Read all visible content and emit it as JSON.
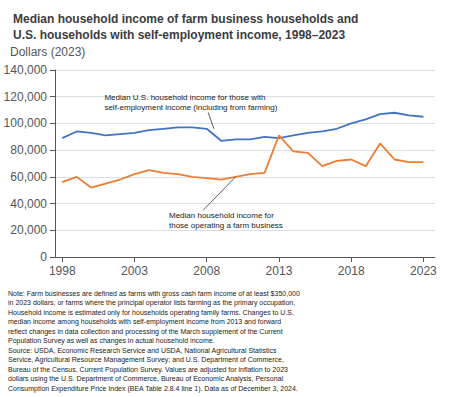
{
  "chart_data": {
    "type": "line",
    "title": "Median household income of farm business households and\nU.S. households with self-employment income, 1998–2023",
    "ylabel": "Dollars (2023)",
    "x": [
      1998,
      1999,
      2000,
      2001,
      2002,
      2003,
      2004,
      2005,
      2006,
      2007,
      2008,
      2009,
      2010,
      2011,
      2012,
      2013,
      2014,
      2015,
      2016,
      2017,
      2018,
      2019,
      2020,
      2021,
      2022,
      2023
    ],
    "series": [
      {
        "color": "#4472c4",
        "values": [
          89000,
          94000,
          93000,
          91000,
          92000,
          93000,
          95000,
          96000,
          97000,
          97000,
          96000,
          87000,
          88000,
          88000,
          90000,
          89000,
          91000,
          93000,
          94000,
          96000,
          100000,
          103000,
          107000,
          108000,
          106000,
          105000
        ]
      },
      {
        "color": "#ed7d31",
        "values": [
          56000,
          60000,
          52000,
          55000,
          58000,
          62000,
          65000,
          63000,
          62000,
          60000,
          59000,
          58000,
          60000,
          62000,
          63000,
          91000,
          79000,
          78000,
          68000,
          72000,
          73000,
          68000,
          85000,
          73000,
          71000,
          71000
        ]
      }
    ],
    "xlim": [
      1997.5,
      2023.8
    ],
    "xticks": [
      1998,
      2003,
      2008,
      2013,
      2018,
      2023
    ],
    "ylim": [
      0,
      140000
    ],
    "yticks": [
      0,
      {
        "value": 20000,
        "label": "20,000"
      },
      {
        "value": 40000,
        "label": "40,000"
      },
      {
        "value": 60000,
        "label": "60,000"
      },
      {
        "value": 80000,
        "label": "80,000"
      },
      {
        "value": 100000,
        "label": "100,000"
      },
      {
        "value": 120000,
        "label": "120,000"
      },
      {
        "value": 140000,
        "label": "140,000"
      }
    ],
    "grid": true,
    "annotations": [
      {
        "text": "Median U.S. household income for those with\nself-employment income (including from farming)",
        "x": 2008.5,
        "y": 96000
      },
      {
        "text": "Median household income for\nthose operating a farm business",
        "x": 2010,
        "y": 60000
      }
    ],
    "note": "Note: Farm businesses are defined as farms with gross cash farm income of at least $350,000\nin 2023 dollars, or farms where the principal operator lists farming as the primary occupation.\nHousehold income is estimated only for households operating family farms. Changes to U.S.\nmedian income among households with self-employment income from 2013 and forward\nreflect changes in data collection and processing of the March supplement of the Current\nPopulation Survey as well as changes in actual household income.\nSource: USDA, Economic Research Service and USDA, National Agricultural Statistics\nService, Agricultural Resource Management Survey; and U.S. Department of Commerce,\nBureau of the Census, Current Population Survey. Values are adjusted for inflation to 2023\ndollars using the U.S. Department of Commerce, Bureau of Economic Analysis, Personal\nConsumption Expenditure Price Index (BEA Table 2.8.4 line 1). Data as of December 3, 2024."
  }
}
